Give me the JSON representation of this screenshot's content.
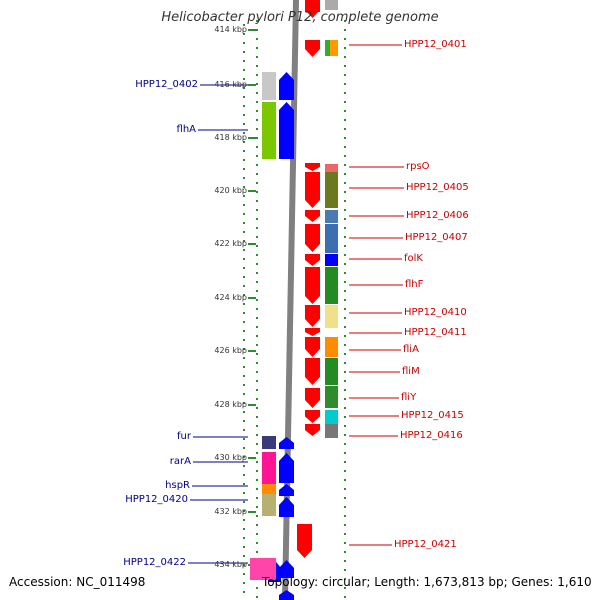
{
  "title": "Helicobacter pylori P12, complete genome",
  "footer": {
    "accession": "Accession: NC_011498",
    "topology": "Topology: circular; Length: 1,673,813 bp; Genes: 1,610"
  },
  "colors": {
    "forward_label": "#cc0000",
    "reverse_label": "#00008b",
    "forward_arrow": "#ff0000",
    "reverse_arrow": "#0000ff",
    "backbone": "#808080",
    "tick_dots": "#2e8b2e"
  },
  "ticks": [
    "414 kbp",
    "416 kbp",
    "418 kbp",
    "420 kbp",
    "422 kbp",
    "424 kbp",
    "426 kbp",
    "428 kbp",
    "430 kbp",
    "432 kbp",
    "434 kbp"
  ],
  "forward_genes": [
    "HPP12_0401",
    "rpsO",
    "HPP12_0405",
    "HPP12_0406",
    "HPP12_0407",
    "folK",
    "flhF",
    "HPP12_0410",
    "HPP12_0411",
    "fliA",
    "fliM",
    "fliY",
    "HPP12_0415",
    "HPP12_0416",
    "HPP12_0421"
  ],
  "reverse_genes": [
    "HPP12_0402",
    "flhA",
    "fur",
    "rarA",
    "hspR",
    "HPP12_0420",
    "HPP12_0422"
  ]
}
